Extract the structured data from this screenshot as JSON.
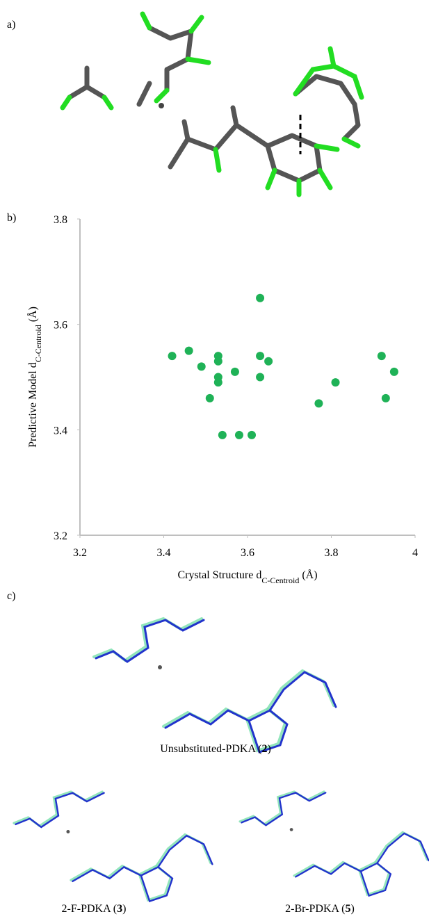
{
  "panels": {
    "a": "a)",
    "b": "b)",
    "c": "c)"
  },
  "chart_data": {
    "type": "scatter",
    "xlabel": {
      "text": "Crystal Structure d",
      "sub": "C-Centroid",
      "unit": " (Å)"
    },
    "ylabel": {
      "text": "Predictive Model d",
      "sub": "C-Centroid",
      "unit": " (Å)"
    },
    "x": [
      3.42,
      3.46,
      3.49,
      3.51,
      3.53,
      3.53,
      3.53,
      3.53,
      3.54,
      3.57,
      3.58,
      3.61,
      3.63,
      3.63,
      3.63,
      3.65,
      3.77,
      3.81,
      3.92,
      3.93,
      3.95
    ],
    "values": [
      3.54,
      3.55,
      3.52,
      3.46,
      3.54,
      3.53,
      3.5,
      3.49,
      3.39,
      3.51,
      3.39,
      3.39,
      3.65,
      3.54,
      3.5,
      3.53,
      3.45,
      3.49,
      3.54,
      3.46,
      3.51
    ],
    "color": "#1fb257",
    "xlim": [
      3.2,
      4
    ],
    "xticks": [
      3.2,
      3.4,
      3.6,
      3.8,
      4
    ],
    "ylim": [
      3.2,
      3.8
    ],
    "yticks": [
      3.2,
      3.4,
      3.6,
      3.8
    ],
    "grid": false
  },
  "captions": [
    {
      "prefix": "Unsubstituted-PDKA (",
      "bold": "2",
      "suffix": ")"
    },
    {
      "prefix": "2-F-PDKA (",
      "bold": "3",
      "suffix": ")"
    },
    {
      "prefix": "2-Br-PDKA (",
      "bold": "5",
      "suffix": ")"
    }
  ]
}
